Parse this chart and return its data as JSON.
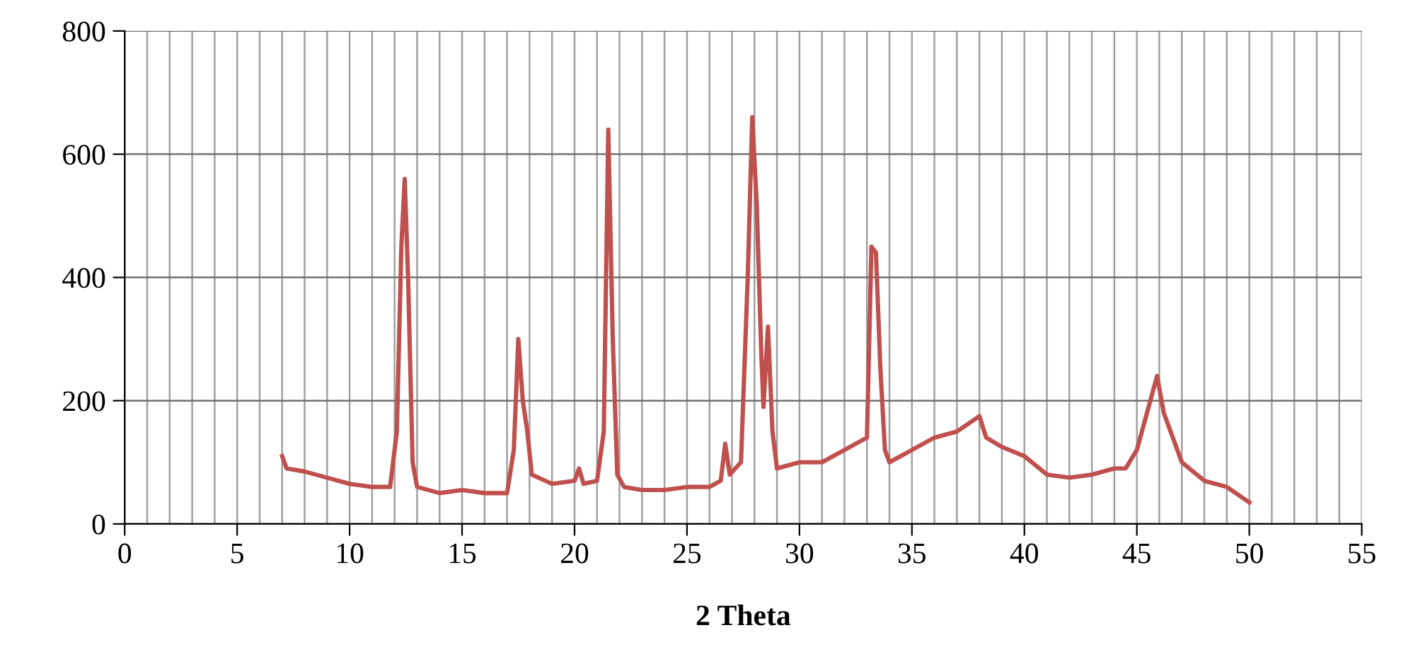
{
  "chart_data": {
    "type": "line",
    "xlabel": "2 Theta",
    "x": [
      7.0,
      7.2,
      8,
      9,
      10,
      11,
      11.8,
      12.1,
      12.3,
      12.45,
      12.6,
      12.8,
      13,
      14,
      15,
      16,
      17,
      17.3,
      17.5,
      17.7,
      17.9,
      18.1,
      19,
      20,
      20.2,
      20.4,
      21,
      21.3,
      21.5,
      21.7,
      21.9,
      22.2,
      23,
      24,
      25,
      26,
      26.5,
      26.7,
      26.9,
      27.4,
      27.7,
      27.9,
      28.1,
      28.3,
      28.4,
      28.6,
      28.8,
      29,
      30,
      31,
      32,
      33,
      33.2,
      33.4,
      33.6,
      33.8,
      34,
      35,
      36,
      37,
      38,
      38.3,
      39,
      40,
      41,
      42,
      43,
      44,
      44.5,
      45,
      45.6,
      45.9,
      46.2,
      47,
      48,
      49,
      50
    ],
    "series": [
      {
        "color": "#c0504d",
        "values": [
          110,
          90,
          85,
          75,
          65,
          60,
          60,
          150,
          450,
          560,
          400,
          100,
          60,
          50,
          55,
          50,
          50,
          120,
          300,
          200,
          150,
          80,
          65,
          70,
          90,
          65,
          70,
          150,
          640,
          300,
          80,
          60,
          55,
          55,
          60,
          60,
          70,
          130,
          80,
          100,
          400,
          660,
          520,
          280,
          190,
          320,
          150,
          90,
          100,
          100,
          120,
          140,
          450,
          440,
          250,
          120,
          100,
          120,
          140,
          150,
          175,
          140,
          125,
          110,
          80,
          75,
          80,
          90,
          90,
          120,
          200,
          240,
          180,
          100,
          70,
          60,
          35
        ]
      }
    ],
    "xlim": [
      0,
      55
    ],
    "xticks": [
      0,
      5,
      10,
      15,
      20,
      25,
      30,
      35,
      40,
      45,
      50,
      55
    ],
    "ylim": [
      0,
      800
    ],
    "yticks": [
      0,
      200,
      400,
      600,
      800
    ],
    "grid": true,
    "marker": "none",
    "line_style": "solid"
  }
}
